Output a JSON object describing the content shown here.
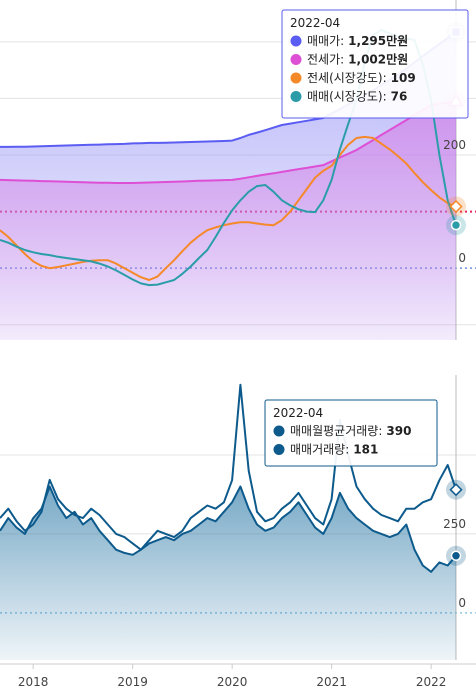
{
  "chart_data": [
    {
      "type": "line",
      "x": [
        "2017-09",
        "2017-10",
        "2017-11",
        "2017-12",
        "2018-01",
        "2018-02",
        "2018-03",
        "2018-04",
        "2018-05",
        "2018-06",
        "2018-07",
        "2018-08",
        "2018-09",
        "2018-10",
        "2018-11",
        "2018-12",
        "2019-01",
        "2019-02",
        "2019-03",
        "2019-04",
        "2019-05",
        "2019-06",
        "2019-07",
        "2019-08",
        "2019-09",
        "2019-10",
        "2019-11",
        "2019-12",
        "2020-01",
        "2020-02",
        "2020-03",
        "2020-04",
        "2020-05",
        "2020-06",
        "2020-07",
        "2020-08",
        "2020-09",
        "2020-10",
        "2020-11",
        "2020-12",
        "2021-01",
        "2021-02",
        "2021-03",
        "2021-04",
        "2021-05",
        "2021-06",
        "2021-07",
        "2021-08",
        "2021-09",
        "2021-10",
        "2021-11",
        "2021-12",
        "2022-01",
        "2022-02",
        "2022-03",
        "2022-04"
      ],
      "ylim": [
        -127,
        474
      ],
      "yticks": [
        0,
        200
      ],
      "gridlines": [
        -100,
        300,
        400
      ],
      "y2lim": [
        -13,
        1431
      ],
      "reference_line": {
        "value": 100,
        "color": "#e3245a"
      },
      "zero_line_color": "#6d8fe0",
      "tooltip_separator": ":",
      "series": [
        {
          "name": "매매가",
          "color": "#5a5cf2",
          "axis": "y2",
          "fill": "#8f8cf5",
          "marker": "square",
          "values": [
            807,
            807,
            808,
            808,
            809,
            810,
            811,
            812,
            813,
            814,
            815,
            816,
            817,
            818,
            819,
            820,
            822,
            823,
            824,
            824,
            825,
            826,
            827,
            828,
            829,
            830,
            831,
            832,
            834,
            845,
            858,
            868,
            878,
            889,
            900,
            906,
            912,
            918,
            924,
            930,
            949,
            968,
            987,
            1006,
            1027,
            1048,
            1070,
            1091,
            1113,
            1140,
            1166,
            1193,
            1219,
            1244,
            1270,
            1295
          ],
          "value_labels": [
            null,
            null,
            null,
            null,
            null,
            null,
            null,
            null,
            null,
            null,
            null,
            null,
            null,
            null,
            null,
            null,
            null,
            null,
            null,
            null,
            null,
            null,
            null,
            null,
            null,
            null,
            null,
            null,
            null,
            null,
            null,
            null,
            null,
            null,
            null,
            null,
            null,
            null,
            null,
            null,
            null,
            null,
            null,
            null,
            null,
            null,
            null,
            null,
            null,
            null,
            null,
            null,
            null,
            null,
            null,
            "1,295만원"
          ]
        },
        {
          "name": "전세가",
          "color": "#dd4fd5",
          "axis": "y2",
          "fill": "#d57be6",
          "marker": "triangle",
          "values": [
            667,
            666,
            665,
            664,
            663,
            662,
            661,
            660,
            659,
            658,
            657,
            656,
            655,
            655,
            654,
            654,
            654,
            655,
            656,
            657,
            658,
            659,
            660,
            662,
            663,
            664,
            665,
            666,
            667,
            672,
            678,
            684,
            690,
            695,
            701,
            707,
            713,
            718,
            724,
            730,
            746,
            762,
            778,
            794,
            815,
            836,
            858,
            879,
            900,
            921,
            943,
            964,
            985,
            991,
            996,
            1002
          ],
          "value_labels": [
            null,
            null,
            null,
            null,
            null,
            null,
            null,
            null,
            null,
            null,
            null,
            null,
            null,
            null,
            null,
            null,
            null,
            null,
            null,
            null,
            null,
            null,
            null,
            null,
            null,
            null,
            null,
            null,
            null,
            null,
            null,
            null,
            null,
            null,
            null,
            null,
            null,
            null,
            null,
            null,
            null,
            null,
            null,
            null,
            null,
            null,
            null,
            null,
            null,
            null,
            null,
            null,
            null,
            null,
            null,
            "1,002만원"
          ]
        },
        {
          "name": "전세(시장강도)",
          "color": "#f5892a",
          "marker": "diamond",
          "values": [
            67,
            55,
            40,
            25,
            12,
            4,
            0,
            2,
            5,
            8,
            11,
            13,
            14,
            14,
            8,
            0,
            -8,
            -16,
            -21,
            -15,
            0,
            14,
            30,
            45,
            57,
            67,
            72,
            76,
            79,
            81,
            81,
            79,
            77,
            76,
            85,
            100,
            120,
            140,
            160,
            172,
            181,
            200,
            218,
            230,
            232,
            230,
            220,
            210,
            198,
            185,
            168,
            152,
            138,
            125,
            115,
            109
          ]
        },
        {
          "name": "매매(시장강도)",
          "color": "#2a9da8",
          "marker": "circle",
          "values": [
            50,
            45,
            38,
            32,
            28,
            25,
            23,
            20,
            18,
            16,
            14,
            12,
            8,
            3,
            -4,
            -12,
            -20,
            -27,
            -30,
            -29,
            -25,
            -21,
            -10,
            3,
            18,
            32,
            55,
            80,
            102,
            120,
            135,
            145,
            147,
            135,
            120,
            111,
            104,
            100,
            99,
            120,
            156,
            210,
            255,
            297,
            365,
            412,
            421,
            415,
            410,
            406,
            403,
            360,
            297,
            200,
            120,
            76
          ]
        }
      ]
    },
    {
      "type": "line",
      "x": [
        "2017-09",
        "2017-10",
        "2017-11",
        "2017-12",
        "2018-01",
        "2018-02",
        "2018-03",
        "2018-04",
        "2018-05",
        "2018-06",
        "2018-07",
        "2018-08",
        "2018-09",
        "2018-10",
        "2018-11",
        "2018-12",
        "2019-01",
        "2019-02",
        "2019-03",
        "2019-04",
        "2019-05",
        "2019-06",
        "2019-07",
        "2019-08",
        "2019-09",
        "2019-10",
        "2019-11",
        "2019-12",
        "2020-01",
        "2020-02",
        "2020-03",
        "2020-04",
        "2020-05",
        "2020-06",
        "2020-07",
        "2020-08",
        "2020-09",
        "2020-10",
        "2020-11",
        "2020-12",
        "2021-01",
        "2021-02",
        "2021-03",
        "2021-04",
        "2021-05",
        "2021-06",
        "2021-07",
        "2021-08",
        "2021-09",
        "2021-10",
        "2021-11",
        "2021-12",
        "2022-01",
        "2022-02",
        "2022-03",
        "2022-04"
      ],
      "ylim": [
        -149,
        753
      ],
      "yticks": [
        0,
        250
      ],
      "gridlines": [
        500
      ],
      "zero_line_color": "#8ec5e8",
      "tooltip_separator": ":",
      "xticks": [
        {
          "value": "2018-01",
          "label": "2018"
        },
        {
          "value": "2019-01",
          "label": "2019"
        },
        {
          "value": "2020-01",
          "label": "2020"
        },
        {
          "value": "2021-01",
          "label": "2021"
        },
        {
          "value": "2022-01",
          "label": "2022"
        }
      ],
      "series": [
        {
          "name": "매매월평균거래량",
          "color": "#0d5a8c",
          "marker": "diamond",
          "values": [
            300,
            330,
            290,
            260,
            280,
            320,
            421,
            360,
            330,
            310,
            300,
            330,
            310,
            280,
            250,
            240,
            220,
            200,
            230,
            260,
            250,
            240,
            260,
            300,
            320,
            340,
            330,
            350,
            420,
            722,
            450,
            320,
            290,
            300,
            330,
            350,
            380,
            340,
            300,
            280,
            360,
            611,
            500,
            400,
            360,
            330,
            310,
            300,
            290,
            330,
            330,
            350,
            360,
            420,
            468,
            390
          ]
        },
        {
          "name": "매매거래량",
          "color": "#0d5a8c",
          "fill": "#2f7ba8",
          "marker": "circle",
          "values": [
            260,
            300,
            270,
            250,
            300,
            330,
            400,
            340,
            300,
            320,
            280,
            300,
            260,
            230,
            200,
            190,
            184,
            200,
            220,
            230,
            240,
            230,
            250,
            260,
            280,
            300,
            290,
            320,
            350,
            400,
            330,
            280,
            260,
            270,
            300,
            320,
            350,
            310,
            270,
            250,
            300,
            380,
            330,
            300,
            280,
            260,
            250,
            240,
            250,
            280,
            200,
            150,
            130,
            160,
            150,
            181
          ]
        }
      ]
    }
  ]
}
